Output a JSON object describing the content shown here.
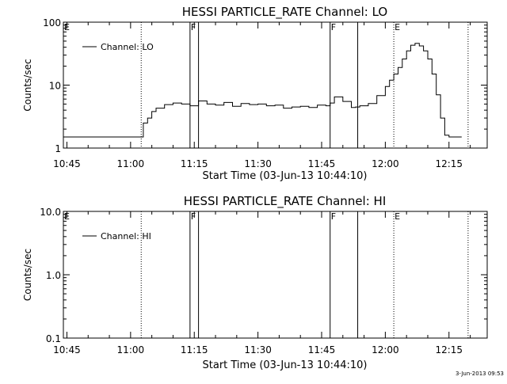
{
  "timestamp": "3-Jun-2013 09:53",
  "chart_data": [
    {
      "type": "line",
      "title": "HESSI PARTICLE_RATE Channel: LO",
      "xlabel": "Start Time (03-Jun-13 10:44:10)",
      "ylabel": "Counts/sec",
      "yscale": "log",
      "ylim": [
        1,
        100
      ],
      "xlim": [
        "10:44:10",
        "12:24:00"
      ],
      "x_tick_labels": [
        "10:45",
        "11:00",
        "11:15",
        "11:30",
        "11:45",
        "12:00",
        "12:15"
      ],
      "y_tick_labels": [
        "1",
        "10",
        "100"
      ],
      "legend": {
        "label": "Channel: LO",
        "placement": "top-left"
      },
      "markers": [
        {
          "label": "E",
          "time": "10:44:10",
          "style": "dotted"
        },
        {
          "label": "",
          "time": "11:02:30",
          "style": "dotted"
        },
        {
          "label": "F",
          "time": "11:14:00",
          "style": "solid"
        },
        {
          "label": "",
          "time": "11:16:00",
          "style": "solid"
        },
        {
          "label": "F",
          "time": "11:47:00",
          "style": "solid"
        },
        {
          "label": "",
          "time": "11:53:30",
          "style": "solid"
        },
        {
          "label": "E",
          "time": "12:02:00",
          "style": "dotted"
        },
        {
          "label": "",
          "time": "12:19:30",
          "style": "dotted"
        }
      ],
      "series": [
        {
          "times": [
            "10:44:10",
            "10:48:00",
            "10:51:00",
            "10:54:00",
            "10:57:00",
            "11:00:00",
            "11:02:30",
            "11:03:00",
            "11:04:00",
            "11:05:00",
            "11:06:00",
            "11:08:00",
            "11:10:00",
            "11:12:00",
            "11:14:00",
            "11:16:00",
            "11:18:00",
            "11:20:00",
            "11:22:00",
            "11:24:00",
            "11:26:00",
            "11:28:00",
            "11:30:00",
            "11:32:00",
            "11:34:00",
            "11:36:00",
            "11:38:00",
            "11:40:00",
            "11:42:00",
            "11:44:00",
            "11:46:00",
            "11:47:00",
            "11:48:00",
            "11:50:00",
            "11:52:00",
            "11:53:00",
            "11:54:00",
            "11:56:00",
            "11:58:00",
            "12:00:00",
            "12:01:00",
            "12:02:00",
            "12:03:00",
            "12:04:00",
            "12:05:00",
            "12:06:00",
            "12:07:00",
            "12:08:00",
            "12:09:00",
            "12:10:00",
            "12:11:00",
            "12:12:00",
            "12:13:00",
            "12:14:00",
            "12:15:00",
            "12:17:00",
            "12:18:00"
          ],
          "values": [
            1.5,
            1.5,
            1.5,
            1.5,
            1.5,
            1.5,
            1.5,
            2.5,
            3.0,
            3.8,
            4.3,
            4.9,
            5.2,
            5.0,
            4.7,
            5.6,
            5.0,
            4.8,
            5.3,
            4.6,
            5.1,
            4.9,
            5.0,
            4.7,
            4.8,
            4.3,
            4.5,
            4.6,
            4.4,
            4.8,
            4.7,
            5.2,
            6.5,
            5.5,
            4.4,
            4.5,
            4.7,
            5.1,
            6.8,
            9.5,
            12,
            15,
            19,
            26,
            35,
            43,
            46,
            42,
            35,
            26,
            15,
            7,
            3,
            1.6,
            1.5,
            1.5,
            1.5
          ]
        }
      ]
    },
    {
      "type": "line",
      "title": "HESSI PARTICLE_RATE Channel: HI",
      "xlabel": "Start Time (03-Jun-13 10:44:10)",
      "ylabel": "Counts/sec",
      "yscale": "log",
      "ylim": [
        0.1,
        10
      ],
      "xlim": [
        "10:44:10",
        "12:24:00"
      ],
      "x_tick_labels": [
        "10:45",
        "11:00",
        "11:15",
        "11:30",
        "11:45",
        "12:00",
        "12:15"
      ],
      "y_tick_labels": [
        "0.1",
        "1.0",
        "10.0"
      ],
      "legend": {
        "label": "Channel: HI",
        "placement": "top-left"
      },
      "markers": [
        {
          "label": "E",
          "time": "10:44:10",
          "style": "dotted"
        },
        {
          "label": "",
          "time": "11:02:30",
          "style": "dotted"
        },
        {
          "label": "F",
          "time": "11:14:00",
          "style": "solid"
        },
        {
          "label": "",
          "time": "11:16:00",
          "style": "solid"
        },
        {
          "label": "F",
          "time": "11:47:00",
          "style": "solid"
        },
        {
          "label": "",
          "time": "11:53:30",
          "style": "solid"
        },
        {
          "label": "E",
          "time": "12:02:00",
          "style": "dotted"
        },
        {
          "label": "",
          "time": "12:19:30",
          "style": "dotted"
        }
      ],
      "series": []
    }
  ]
}
